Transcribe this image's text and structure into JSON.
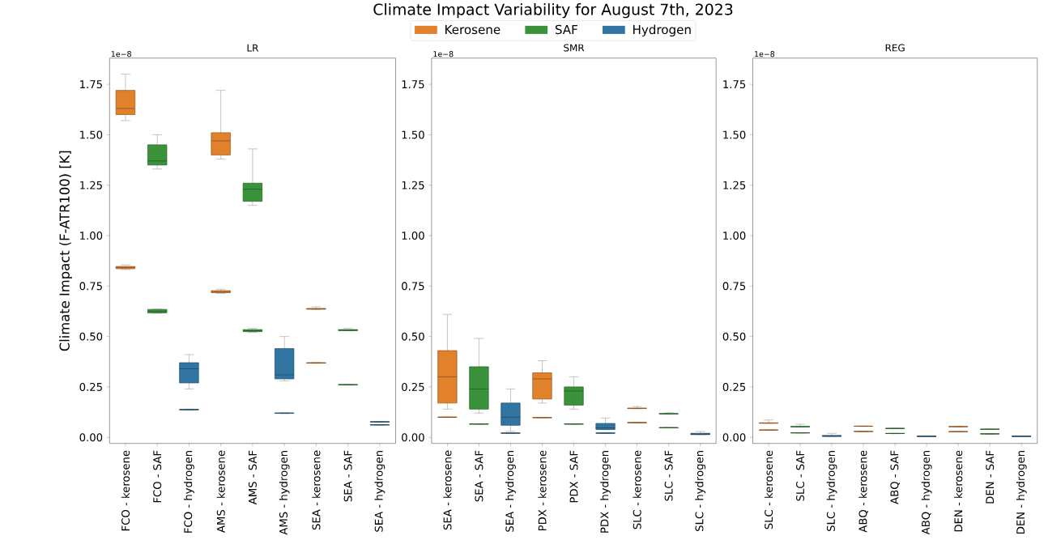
{
  "chart_data": [
    {
      "type": "box",
      "subtitle": "LR",
      "ylabel": "Climate Impact (F-ATR100) [K]",
      "legend": "top",
      "annotations": [
        "1e−8"
      ],
      "categories": [
        "FCO - kerosene",
        "FCO - SAF",
        "FCO - hydrogen",
        "AMS - kerosene",
        "AMS - SAF",
        "AMS - hydrogen",
        "SEA - kerosene",
        "SEA - SAF",
        "SEA - hydrogen"
      ],
      "ylim": [
        -0.03,
        1.88
      ],
      "yticks": [
        {
          "value": 0,
          "label": "0.00"
        },
        {
          "value": 0.25,
          "label": "0.25"
        },
        {
          "value": 0.5,
          "label": "0.50"
        },
        {
          "value": 0.75,
          "label": "0.75"
        },
        {
          "value": 1,
          "label": "1.00"
        },
        {
          "value": 1.25,
          "label": "1.25"
        },
        {
          "value": 1.5,
          "label": "1.50"
        },
        {
          "value": 1.75,
          "label": "1.75"
        }
      ],
      "series": [
        {
          "name": "Kerosene",
          "color": "#e1812c",
          "boxes": [
            {
              "low": 1.57,
              "q1": 1.6,
              "median": 1.63,
              "q3": 1.72,
              "high": 1.8
            },
            null,
            null,
            {
              "low": 1.38,
              "q1": 1.4,
              "median": 1.47,
              "q3": 1.51,
              "high": 1.72
            },
            null,
            null,
            {
              "low": 0.634,
              "q1": 0.635,
              "median": 0.637,
              "q3": 0.639,
              "high": 0.647
            },
            null,
            null
          ]
        },
        {
          "name": "SAF",
          "color": "#3a923a",
          "boxes": [
            null,
            {
              "low": 1.33,
              "q1": 1.35,
              "median": 1.37,
              "q3": 1.45,
              "high": 1.5
            },
            null,
            null,
            {
              "low": 1.15,
              "q1": 1.17,
              "median": 1.23,
              "q3": 1.26,
              "high": 1.43
            },
            null,
            null,
            {
              "low": 0.528,
              "q1": 0.529,
              "median": 0.532,
              "q3": 0.534,
              "high": 0.54
            },
            null
          ]
        },
        {
          "name": "Hydrogen",
          "color": "#3274a1",
          "boxes": [
            null,
            null,
            {
              "low": 0.24,
              "q1": 0.27,
              "median": 0.34,
              "q3": 0.37,
              "high": 0.41
            },
            null,
            null,
            {
              "low": 0.28,
              "q1": 0.29,
              "median": 0.31,
              "q3": 0.44,
              "high": 0.5
            },
            null,
            null,
            {
              "low": 0.075,
              "q1": 0.076,
              "median": 0.077,
              "q3": 0.078,
              "high": 0.079
            }
          ]
        },
        {
          "color": "#e1812c",
          "boxes": [
            {
              "low": 0.832,
              "q1": 0.836,
              "median": 0.842,
              "q3": 0.847,
              "high": 0.855
            },
            null,
            null,
            {
              "low": 0.713,
              "q1": 0.717,
              "median": 0.722,
              "q3": 0.727,
              "high": 0.734
            },
            null,
            null,
            {
              "low": 0.367,
              "q1": 0.368,
              "median": 0.369,
              "q3": 0.37,
              "high": 0.371
            },
            null,
            null
          ]
        },
        {
          "color": "#3a923a",
          "boxes": [
            null,
            {
              "low": 0.615,
              "q1": 0.617,
              "median": 0.625,
              "q3": 0.634,
              "high": 0.636
            },
            null,
            null,
            {
              "low": 0.52,
              "q1": 0.524,
              "median": 0.529,
              "q3": 0.534,
              "high": 0.54
            },
            null,
            null,
            {
              "low": 0.259,
              "q1": 0.26,
              "median": 0.261,
              "q3": 0.262,
              "high": 0.263
            },
            null
          ]
        },
        {
          "color": "#3274a1",
          "boxes": [
            null,
            null,
            {
              "low": 0.135,
              "q1": 0.136,
              "median": 0.138,
              "q3": 0.139,
              "high": 0.14
            },
            null,
            null,
            {
              "low": 0.118,
              "q1": 0.119,
              "median": 0.12,
              "q3": 0.121,
              "high": 0.122
            },
            null,
            null,
            {
              "low": 0.06,
              "q1": 0.061,
              "median": 0.062,
              "q3": 0.063,
              "high": 0.064
            }
          ]
        }
      ]
    },
    {
      "type": "box",
      "title": "Climate Impact Variability for August 7th, 2023",
      "subtitle": "SMR",
      "annotations": [
        "1e−8"
      ],
      "categories": [
        "SEA - kerosene",
        "SEA - SAF",
        "SEA - hydrogen",
        "PDX - kerosene",
        "PDX - SAF",
        "PDX - hydrogen",
        "SLC - kerosene",
        "SLC - SAF",
        "SLC - hydrogen"
      ],
      "ylim": [
        -0.03,
        1.88
      ],
      "yticks": [
        {
          "value": 0,
          "label": "0.00"
        },
        {
          "value": 0.25,
          "label": "0.25"
        },
        {
          "value": 0.5,
          "label": "0.50"
        },
        {
          "value": 0.75,
          "label": "0.75"
        },
        {
          "value": 1,
          "label": "1.00"
        },
        {
          "value": 1.25,
          "label": "1.25"
        },
        {
          "value": 1.5,
          "label": "1.50"
        },
        {
          "value": 1.75,
          "label": "1.75"
        }
      ],
      "series": [
        {
          "color": "#e1812c",
          "boxes": [
            {
              "low": 0.14,
              "q1": 0.17,
              "median": 0.3,
              "q3": 0.43,
              "high": 0.61
            },
            null,
            null,
            {
              "low": 0.17,
              "q1": 0.19,
              "median": 0.29,
              "q3": 0.32,
              "high": 0.38
            },
            null,
            null,
            {
              "low": 0.142,
              "q1": 0.143,
              "median": 0.144,
              "q3": 0.145,
              "high": 0.153
            },
            null,
            null
          ]
        },
        {
          "color": "#3a923a",
          "boxes": [
            null,
            {
              "low": 0.12,
              "q1": 0.14,
              "median": 0.24,
              "q3": 0.35,
              "high": 0.49
            },
            null,
            null,
            {
              "low": 0.14,
              "q1": 0.16,
              "median": 0.23,
              "q3": 0.25,
              "high": 0.3
            },
            null,
            null,
            {
              "low": 0.115,
              "q1": 0.116,
              "median": 0.117,
              "q3": 0.118,
              "high": 0.122
            },
            null
          ]
        },
        {
          "color": "#3274a1",
          "boxes": [
            null,
            null,
            {
              "low": 0.03,
              "q1": 0.06,
              "median": 0.1,
              "q3": 0.17,
              "high": 0.24
            },
            null,
            null,
            {
              "low": 0.038,
              "q1": 0.039,
              "median": 0.047,
              "q3": 0.069,
              "high": 0.096
            },
            null,
            null,
            {
              "low": 0.014,
              "q1": 0.015,
              "median": 0.017,
              "q3": 0.02,
              "high": 0.029
            }
          ]
        },
        {
          "color": "#e1812c",
          "boxes": [
            {
              "low": 0.099,
              "q1": 0.099,
              "median": 0.1,
              "q3": 0.101,
              "high": 0.101
            },
            null,
            null,
            {
              "low": 0.097,
              "q1": 0.097,
              "median": 0.098,
              "q3": 0.099,
              "high": 0.099
            },
            null,
            null,
            {
              "low": 0.072,
              "q1": 0.072,
              "median": 0.073,
              "q3": 0.074,
              "high": 0.074
            },
            null,
            null
          ]
        },
        {
          "color": "#3a923a",
          "boxes": [
            null,
            {
              "low": 0.065,
              "q1": 0.065,
              "median": 0.066,
              "q3": 0.067,
              "high": 0.067
            },
            null,
            null,
            {
              "low": 0.065,
              "q1": 0.065,
              "median": 0.066,
              "q3": 0.067,
              "high": 0.067
            },
            null,
            null,
            {
              "low": 0.047,
              "q1": 0.047,
              "median": 0.048,
              "q3": 0.049,
              "high": 0.049
            },
            null
          ]
        },
        {
          "color": "#3274a1",
          "boxes": [
            null,
            null,
            {
              "low": 0.02,
              "q1": 0.02,
              "median": 0.021,
              "q3": 0.022,
              "high": 0.022
            },
            null,
            null,
            {
              "low": 0.02,
              "q1": 0.02,
              "median": 0.021,
              "q3": 0.022,
              "high": 0.022
            },
            null,
            null,
            {
              "low": 0.014,
              "q1": 0.014,
              "median": 0.015,
              "q3": 0.016,
              "high": 0.016
            }
          ]
        }
      ]
    },
    {
      "type": "box",
      "subtitle": "REG",
      "annotations": [
        "1e−8"
      ],
      "categories": [
        "SLC - kerosene",
        "SLC - SAF",
        "SLC - hydrogen",
        "ABQ - kerosene",
        "ABQ - SAF",
        "ABQ - hydrogen",
        "DEN - kerosene",
        "DEN - SAF",
        "DEN - hydrogen"
      ],
      "ylim": [
        -0.03,
        1.88
      ],
      "yticks": [
        {
          "value": 0,
          "label": "0.00"
        },
        {
          "value": 0.25,
          "label": "0.25"
        },
        {
          "value": 0.5,
          "label": "0.50"
        },
        {
          "value": 0.75,
          "label": "0.75"
        },
        {
          "value": 1,
          "label": "1.00"
        },
        {
          "value": 1.25,
          "label": "1.25"
        },
        {
          "value": 1.5,
          "label": "1.50"
        },
        {
          "value": 1.75,
          "label": "1.75"
        }
      ],
      "series": [
        {
          "color": "#e1812c",
          "boxes": [
            {
              "low": 0.07,
              "q1": 0.07,
              "median": 0.071,
              "q3": 0.072,
              "high": 0.086
            },
            null,
            null,
            {
              "low": 0.054,
              "q1": 0.055,
              "median": 0.055,
              "q3": 0.056,
              "high": 0.056
            },
            null,
            null,
            {
              "low": 0.052,
              "q1": 0.053,
              "median": 0.053,
              "q3": 0.054,
              "high": 0.054
            },
            null,
            null
          ]
        },
        {
          "color": "#3a923a",
          "boxes": [
            null,
            {
              "low": 0.052,
              "q1": 0.052,
              "median": 0.053,
              "q3": 0.054,
              "high": 0.065
            },
            null,
            null,
            {
              "low": 0.043,
              "q1": 0.044,
              "median": 0.044,
              "q3": 0.045,
              "high": 0.045
            },
            null,
            null,
            {
              "low": 0.039,
              "q1": 0.04,
              "median": 0.04,
              "q3": 0.041,
              "high": 0.041
            },
            null
          ]
        },
        {
          "color": "#3274a1",
          "boxes": [
            null,
            null,
            {
              "low": 0.007,
              "q1": 0.007,
              "median": 0.008,
              "q3": 0.009,
              "high": 0.02
            },
            null,
            null,
            {
              "low": 0.006,
              "q1": 0.006,
              "median": 0.006,
              "q3": 0.007,
              "high": 0.007
            },
            null,
            null,
            {
              "low": 0.006,
              "q1": 0.006,
              "median": 0.006,
              "q3": 0.007,
              "high": 0.007
            }
          ]
        },
        {
          "color": "#e1812c",
          "boxes": [
            {
              "low": 0.035,
              "q1": 0.036,
              "median": 0.036,
              "q3": 0.037,
              "high": 0.037
            },
            null,
            null,
            {
              "low": 0.028,
              "q1": 0.029,
              "median": 0.029,
              "q3": 0.03,
              "high": 0.03
            },
            null,
            null,
            {
              "low": 0.027,
              "q1": 0.028,
              "median": 0.028,
              "q3": 0.029,
              "high": 0.029
            },
            null,
            null
          ]
        },
        {
          "color": "#3a923a",
          "boxes": [
            null,
            {
              "low": 0.021,
              "q1": 0.022,
              "median": 0.022,
              "q3": 0.023,
              "high": 0.023
            },
            null,
            null,
            {
              "low": 0.018,
              "q1": 0.019,
              "median": 0.019,
              "q3": 0.02,
              "high": 0.02
            },
            null,
            null,
            {
              "low": 0.016,
              "q1": 0.017,
              "median": 0.017,
              "q3": 0.018,
              "high": 0.018
            },
            null
          ]
        },
        {
          "color": "#3274a1",
          "boxes": [
            null,
            null,
            {
              "low": 0.005,
              "q1": 0.005,
              "median": 0.006,
              "q3": 0.006,
              "high": 0.006
            },
            null,
            null,
            {
              "low": 0.004,
              "q1": 0.005,
              "median": 0.005,
              "q3": 0.005,
              "high": 0.005
            },
            null,
            null,
            {
              "low": 0.004,
              "q1": 0.005,
              "median": 0.005,
              "q3": 0.005,
              "high": 0.005
            }
          ]
        }
      ]
    }
  ]
}
